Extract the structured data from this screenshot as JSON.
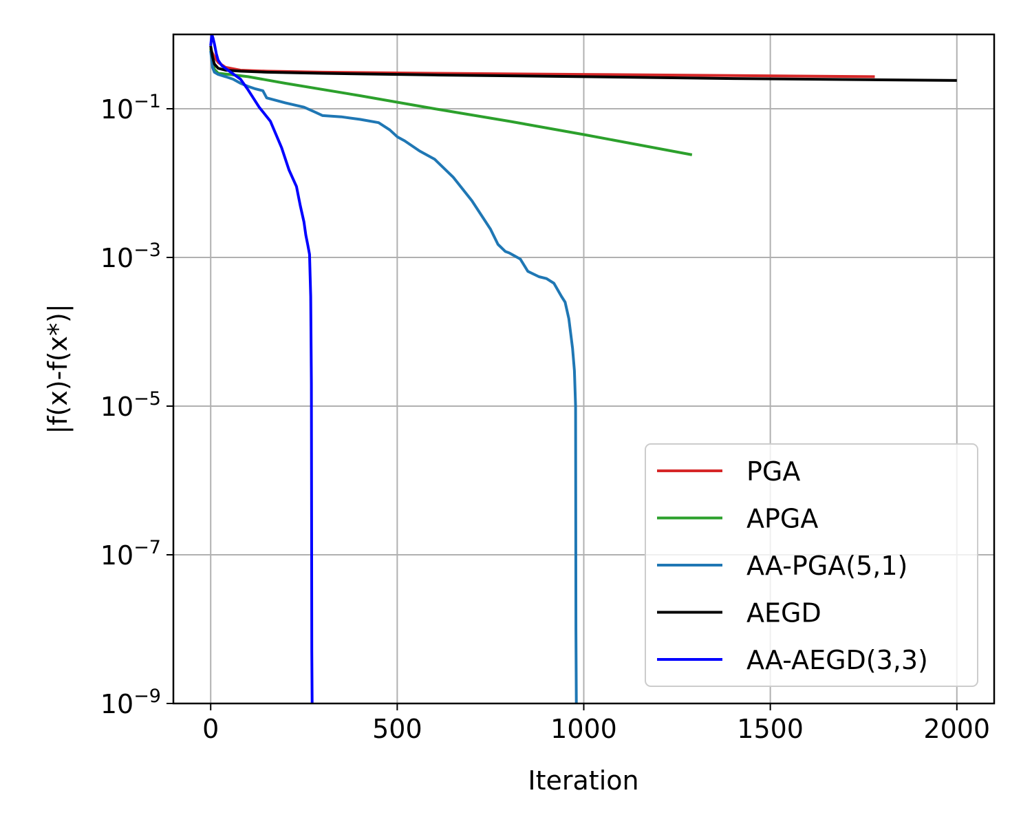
{
  "chart_data": {
    "type": "line",
    "title": "",
    "xlabel": "Iteration",
    "ylabel": "|f(x)-f(x*)|",
    "xlim": [
      -100,
      2100
    ],
    "ylim": [
      1e-09,
      1
    ],
    "yscale": "log",
    "grid": true,
    "legend_position": "lower right",
    "x_ticks": [
      0,
      500,
      1000,
      1500,
      2000
    ],
    "x_tick_labels": [
      "0",
      "500",
      "1000",
      "1500",
      "2000"
    ],
    "y_ticks": [
      0.1,
      0.001,
      1e-05,
      1e-07,
      1e-09
    ],
    "y_tick_labels": [
      {
        "base": "10",
        "exp": "−1"
      },
      {
        "base": "10",
        "exp": "−3"
      },
      {
        "base": "10",
        "exp": "−5"
      },
      {
        "base": "10",
        "exp": "−7"
      },
      {
        "base": "10",
        "exp": "−9"
      }
    ],
    "series": [
      {
        "name": "PGA",
        "color": "#d62728",
        "x": [
          0,
          10,
          20,
          40,
          80,
          150,
          300,
          600,
          1000,
          1400,
          1780
        ],
        "y": [
          0.62,
          0.5,
          0.42,
          0.36,
          0.33,
          0.32,
          0.31,
          0.3,
          0.29,
          0.28,
          0.27
        ]
      },
      {
        "name": "APGA",
        "color": "#2ca02c",
        "x": [
          0,
          5,
          10,
          20,
          50,
          100,
          200,
          400,
          600,
          800,
          1000,
          1290
        ],
        "y": [
          0.65,
          0.45,
          0.34,
          0.3,
          0.29,
          0.27,
          0.22,
          0.15,
          0.1,
          0.068,
          0.045,
          0.024
        ]
      },
      {
        "name": "AA-PGA(5,1)",
        "color": "#1f77b4",
        "x": [
          0,
          5,
          10,
          20,
          40,
          60,
          80,
          100,
          120,
          140,
          150,
          200,
          250,
          280,
          300,
          350,
          400,
          450,
          480,
          500,
          520,
          560,
          600,
          650,
          700,
          750,
          770,
          790,
          800,
          830,
          850,
          880,
          900,
          920,
          940,
          950,
          960,
          970,
          975,
          978,
          979,
          980
        ],
        "y": [
          0.6,
          0.36,
          0.31,
          0.29,
          0.27,
          0.25,
          0.22,
          0.2,
          0.185,
          0.175,
          0.14,
          0.12,
          0.105,
          0.09,
          0.081,
          0.078,
          0.072,
          0.065,
          0.052,
          0.042,
          0.037,
          0.027,
          0.021,
          0.012,
          0.0058,
          0.0024,
          0.0015,
          0.0012,
          0.00115,
          0.00095,
          0.00065,
          0.00055,
          0.00052,
          0.00045,
          0.0003,
          0.00025,
          0.00015,
          6e-05,
          3e-05,
          1e-05,
          1e-08,
          1e-09
        ]
      },
      {
        "name": "AEGD",
        "color": "#000000",
        "x": [
          0,
          5,
          10,
          20,
          40,
          80,
          150,
          300,
          600,
          1000,
          1400,
          1800,
          2000
        ],
        "y": [
          0.7,
          0.5,
          0.4,
          0.35,
          0.33,
          0.32,
          0.31,
          0.3,
          0.285,
          0.27,
          0.255,
          0.245,
          0.24
        ]
      },
      {
        "name": "AA-AEGD(3,3)",
        "color": "#0000ff",
        "x": [
          0,
          3,
          6,
          10,
          15,
          20,
          30,
          50,
          80,
          100,
          130,
          160,
          190,
          210,
          230,
          240,
          250,
          255,
          260,
          265,
          268,
          270,
          271,
          272
        ],
        "y": [
          0.7,
          1.0,
          0.9,
          0.75,
          0.55,
          0.45,
          0.38,
          0.32,
          0.25,
          0.18,
          0.105,
          0.068,
          0.03,
          0.015,
          0.009,
          0.005,
          0.003,
          0.002,
          0.0015,
          0.0011,
          0.0003,
          2e-05,
          5e-09,
          1e-09
        ]
      }
    ]
  }
}
